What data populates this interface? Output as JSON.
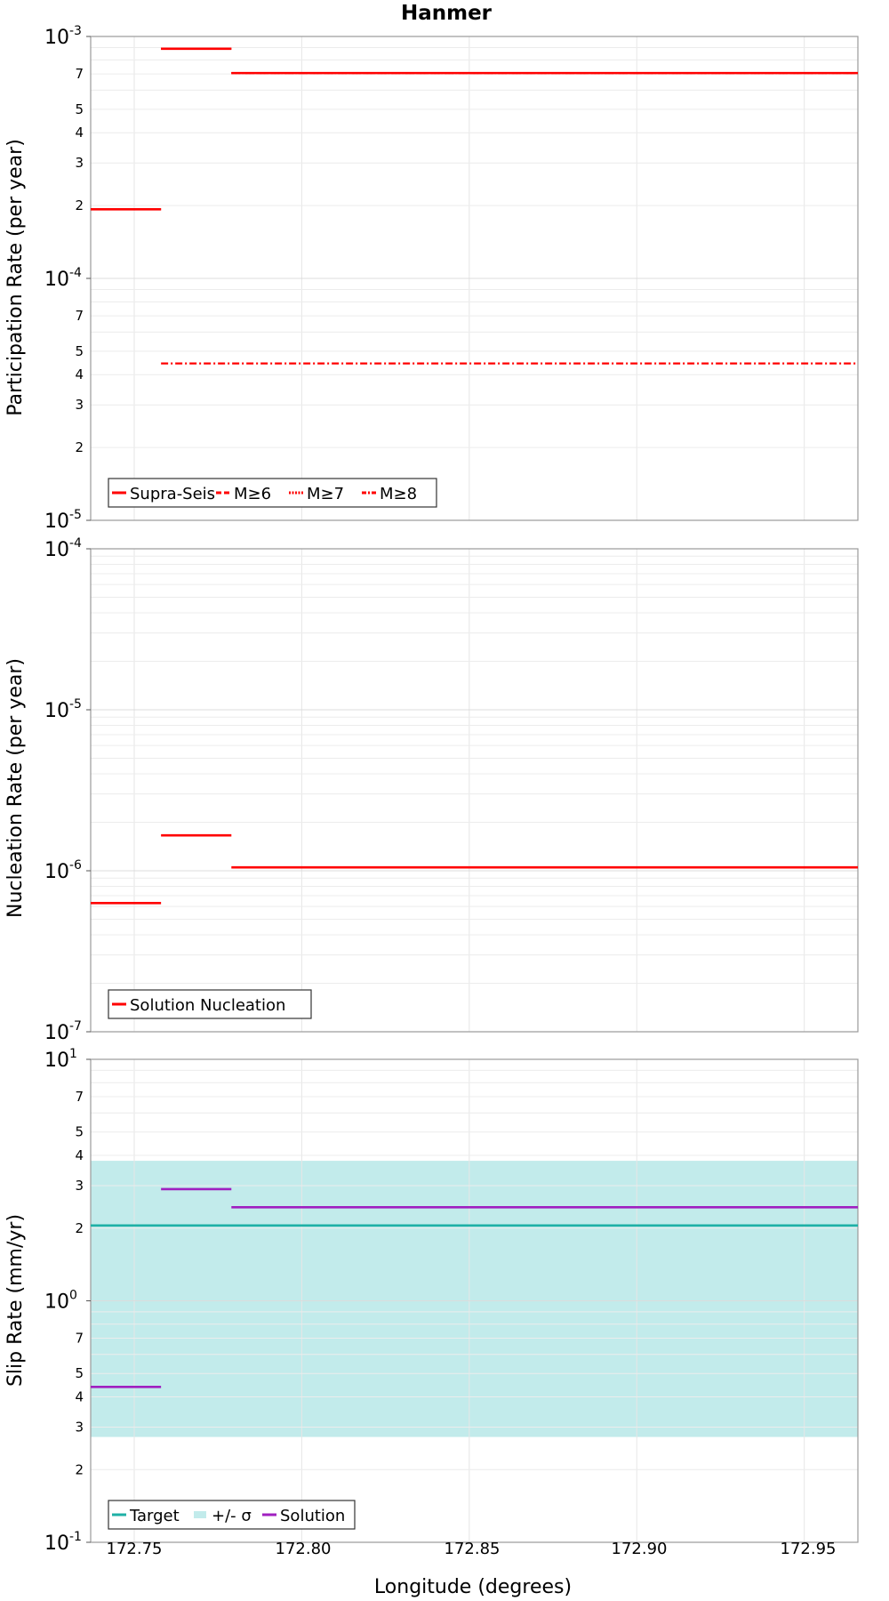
{
  "title": "Hanmer",
  "xlabel": "Longitude (degrees)",
  "x_ticks": [
    "172.75",
    "172.80",
    "172.85",
    "172.90",
    "172.95"
  ],
  "colors": {
    "solution_red": "#ff0000",
    "target": "#1fb0a6",
    "band": "#c2ebeb",
    "solution_slip": "#a020c0"
  },
  "chart_data": [
    {
      "type": "line",
      "ylabel": "Participation Rate (per year)",
      "yscale": "log",
      "xlim": [
        172.737,
        172.966
      ],
      "ylim": [
        1e-05,
        0.001
      ],
      "y_major_ticks": {
        "base": [
          "10",
          "10"
        ],
        "exp": [
          "-3",
          "-4"
        ]
      },
      "y_bottom_tick": {
        "base": "10",
        "exp": "-5"
      },
      "y_minor_labels": [
        "7",
        "5",
        "4",
        "3",
        "2",
        "7",
        "5",
        "4",
        "3",
        "2"
      ],
      "legend": [
        "Supra-Seis",
        "M≥6",
        "M≥7",
        "M≥8"
      ],
      "series": [
        {
          "name": "Supra-Seis",
          "x": [
            172.737,
            172.758,
            172.758,
            172.779,
            172.779,
            172.966
          ],
          "y": [
            0.000193,
            0.000193,
            0.00089,
            0.00089,
            0.000706,
            0.000706
          ]
        },
        {
          "name": "M≥6",
          "x": [
            172.737,
            172.758,
            172.758,
            172.779,
            172.779,
            172.966
          ],
          "y": [
            0.000193,
            0.000193,
            0.00089,
            0.00089,
            0.000706,
            0.000706
          ]
        },
        {
          "name": "M≥7",
          "x": [
            172.737,
            172.758,
            172.758,
            172.779,
            172.779,
            172.966
          ],
          "y": [
            0.000193,
            0.000193,
            0.00089,
            0.00089,
            0.000706,
            0.000706
          ]
        },
        {
          "name": "M≥8",
          "x": [
            172.758,
            172.966
          ],
          "y": [
            4.45e-05,
            4.45e-05
          ]
        }
      ]
    },
    {
      "type": "line",
      "ylabel": "Nucleation Rate (per year)",
      "yscale": "log",
      "xlim": [
        172.737,
        172.966
      ],
      "ylim": [
        1e-07,
        0.0001
      ],
      "y_major_ticks": {
        "base": [
          "10",
          "10",
          "10"
        ],
        "exp": [
          "-4",
          "-5",
          "-6"
        ]
      },
      "y_bottom_tick": {
        "base": "10",
        "exp": "-7"
      },
      "legend": [
        "Solution Nucleation"
      ],
      "series": [
        {
          "name": "Solution Nucleation",
          "x": [
            172.737,
            172.758,
            172.758,
            172.779,
            172.779,
            172.966
          ],
          "y": [
            6.3e-07,
            6.3e-07,
            1.66e-06,
            1.66e-06,
            1.05e-06,
            1.05e-06
          ]
        }
      ]
    },
    {
      "type": "line",
      "ylabel": "Slip Rate (mm/yr)",
      "yscale": "log",
      "xlim": [
        172.737,
        172.966
      ],
      "ylim": [
        0.1,
        10
      ],
      "y_major_ticks": {
        "base": [
          "10",
          "10"
        ],
        "exp": [
          "1",
          "0"
        ]
      },
      "y_bottom_tick": {
        "base": "10",
        "exp": "-1"
      },
      "y_minor_labels": [
        "7",
        "5",
        "4",
        "3",
        "2",
        "7",
        "5",
        "4",
        "3",
        "2"
      ],
      "legend": [
        "Target",
        "+/- σ",
        "Solution"
      ],
      "band": {
        "name": "+/- σ",
        "low": 0.273,
        "high": 3.8
      },
      "series": [
        {
          "name": "Target",
          "x": [
            172.737,
            172.966
          ],
          "y": [
            2.05,
            2.05
          ]
        },
        {
          "name": "Solution",
          "x": [
            172.737,
            172.758,
            172.758,
            172.779,
            172.779,
            172.966
          ],
          "y": [
            0.44,
            0.44,
            2.9,
            2.9,
            2.44,
            2.44
          ]
        }
      ]
    }
  ]
}
